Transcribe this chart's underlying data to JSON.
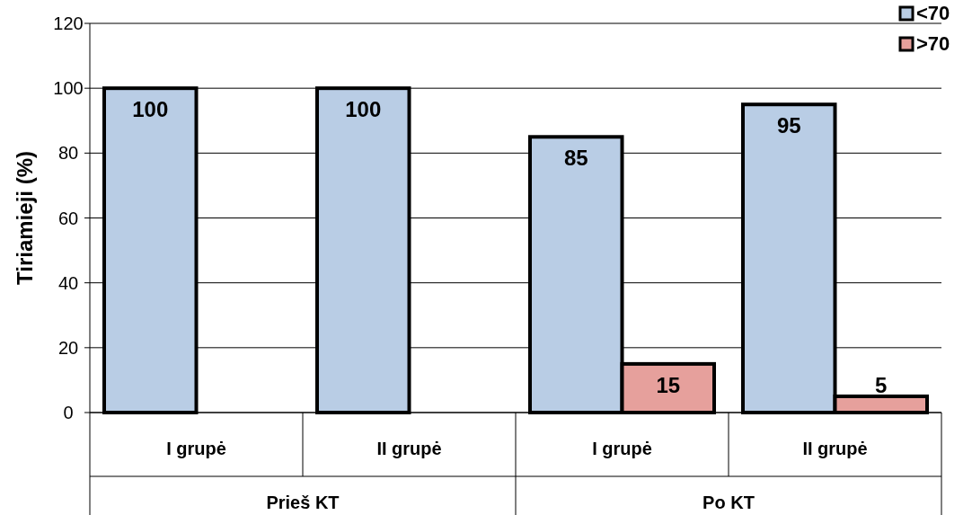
{
  "chart_data": {
    "type": "bar",
    "ylabel": "Tiriamieji (%)",
    "categories": [
      "I grupė",
      "II grupė",
      "I grupė",
      "II grupė"
    ],
    "series": [
      {
        "name": "<70",
        "color": "#b9cde5",
        "values": [
          100,
          100,
          85,
          95
        ]
      },
      {
        "name": ">70",
        "color": "#e6a09c",
        "values": [
          null,
          null,
          15,
          5
        ]
      }
    ],
    "ylim": [
      0,
      120
    ],
    "yticks": [
      0,
      20,
      40,
      60,
      80,
      100,
      120
    ],
    "grid": "y",
    "legend": "top right",
    "data_labels": true,
    "annotations": [
      "Prieš KT",
      "Po KT"
    ]
  }
}
